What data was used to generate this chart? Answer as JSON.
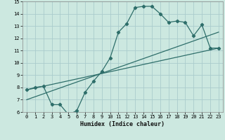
{
  "title": "",
  "xlabel": "Humidex (Indice chaleur)",
  "xlim": [
    -0.5,
    23.5
  ],
  "ylim": [
    6,
    15
  ],
  "xticks": [
    0,
    1,
    2,
    3,
    4,
    5,
    6,
    7,
    8,
    9,
    10,
    11,
    12,
    13,
    14,
    15,
    16,
    17,
    18,
    19,
    20,
    21,
    22,
    23
  ],
  "yticks": [
    6,
    7,
    8,
    9,
    10,
    11,
    12,
    13,
    14,
    15
  ],
  "bg_color": "#cce8e0",
  "grid_color": "#aacccc",
  "line_color": "#2e6e6a",
  "line1_x": [
    0,
    1,
    2,
    3,
    4,
    5,
    6,
    7,
    8,
    9,
    10,
    11,
    12,
    13,
    14,
    15,
    16,
    17,
    18,
    19,
    20,
    21,
    22,
    23
  ],
  "line1_y": [
    7.8,
    8.0,
    8.1,
    6.6,
    6.6,
    5.8,
    6.1,
    7.6,
    8.5,
    9.3,
    10.4,
    12.5,
    13.2,
    14.5,
    14.6,
    14.6,
    14.0,
    13.3,
    13.4,
    13.3,
    12.2,
    13.1,
    11.2,
    11.2
  ],
  "line2_x": [
    0,
    23
  ],
  "line2_y": [
    7.8,
    11.2
  ],
  "line3_x": [
    0,
    23
  ],
  "line3_y": [
    7.0,
    12.5
  ],
  "xlabel_fontsize": 6.0,
  "tick_fontsize": 5.0
}
